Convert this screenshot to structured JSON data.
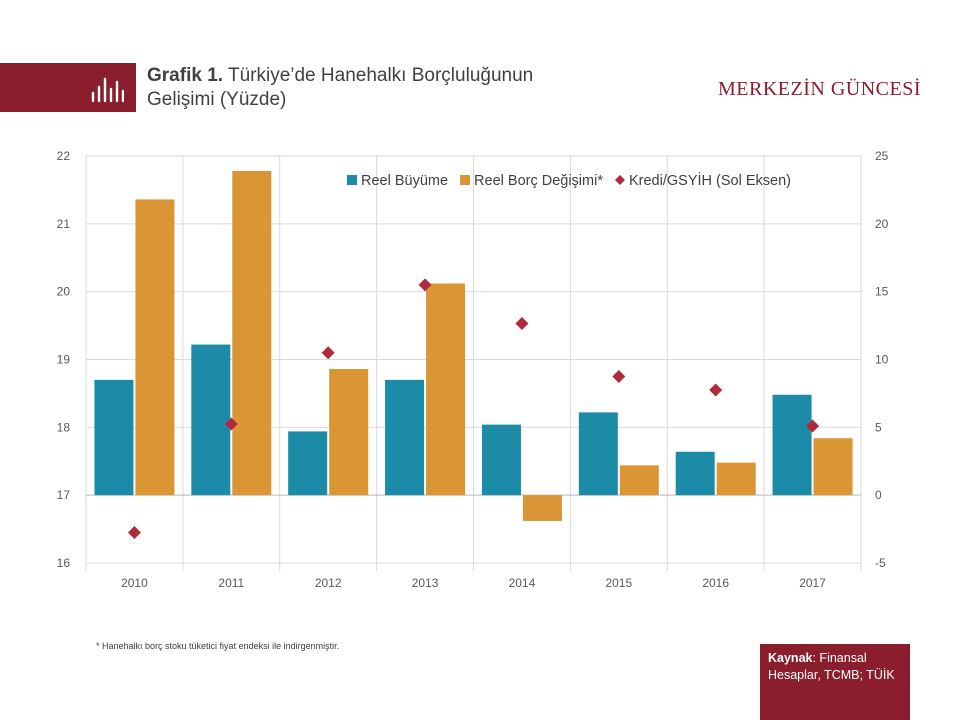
{
  "header": {
    "title_bold": "Grafik 1.",
    "title_rest": "Türkiye’de  Hanehalkı Borçluluğunun",
    "title_line2": "Gelişimi  (Yüzde)",
    "brand": "MERKEZİN GÜNCESİ",
    "brand_color": "#8b1e2d",
    "icon": "bar-chart-icon"
  },
  "chart_data": {
    "type": "bar",
    "categories": [
      "2010",
      "2011",
      "2012",
      "2013",
      "2014",
      "2015",
      "2016",
      "2017"
    ],
    "series": [
      {
        "name": "Reel Büyüme",
        "kind": "bar",
        "axis": "right",
        "color": "#1b8ba8",
        "values": [
          8.5,
          11.1,
          4.7,
          8.5,
          5.2,
          6.1,
          3.2,
          7.4
        ]
      },
      {
        "name": "Reel Borç Değişimi*",
        "kind": "bar",
        "axis": "right",
        "color": "#da9535",
        "values": [
          21.8,
          23.9,
          9.3,
          15.6,
          -1.9,
          2.2,
          2.4,
          4.2
        ]
      },
      {
        "name": "Kredi/GSYİH (Sol Eksen)",
        "kind": "marker",
        "axis": "left",
        "color": "#b02a3d",
        "values": [
          16.45,
          18.05,
          19.1,
          20.1,
          19.53,
          18.75,
          18.55,
          18.02
        ]
      }
    ],
    "left_axis": {
      "min": 16,
      "max": 22,
      "ticks": [
        "16",
        "17",
        "18",
        "19",
        "20",
        "21",
        "22"
      ]
    },
    "right_axis": {
      "min": -5,
      "max": 25,
      "ticks": [
        "-5",
        "0",
        "5",
        "10",
        "15",
        "20",
        "25"
      ]
    },
    "grid": true,
    "legend_position": "top-right"
  },
  "footnote": "* Hanehalkı borç stoku tüketici fiyat endeksi ile indirgenmiştir.",
  "source": {
    "label": "Kaynak",
    "text": ": Finansal Hesaplar, TCMB; TÜİK"
  }
}
